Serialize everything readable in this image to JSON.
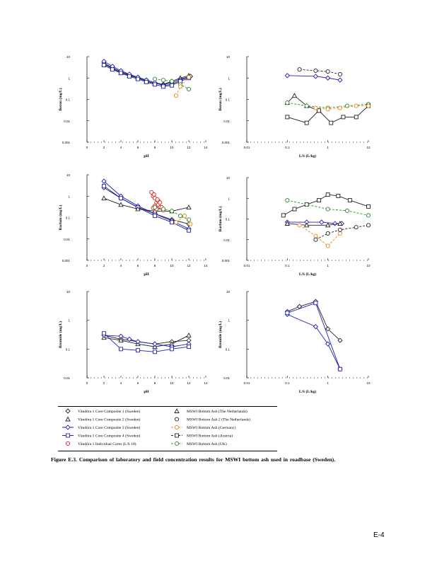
{
  "figure": {
    "caption": "Figure E.3. Comparison of laboratory and field concentration results for MSWI bottom ash used in roadbase (Sweden).",
    "page_number": "E-4"
  },
  "legend": {
    "left": [
      "Vändöra 1 Core Composite 1 (Sweden)",
      "Vändöra 1 Core Composite 2 (Sweden)",
      "Vändöra 1 Core Composite 3 (Sweden)",
      "Vändöra 1 Core Composite 4 (Sweden)",
      "Vändöra 1 Individual Cores (L/S 10)"
    ],
    "right": [
      "MSWI Bottom Ash (The Netherlands)",
      "MSWI Bottom Ash 2 (The Netherlands)",
      "MSWI Bottom Ash (Germany)",
      "MSWI Bottom Ash (Austria)",
      "MSWI Bottom Ash (UK)"
    ]
  },
  "colors": {
    "blue": "#1f1fb4",
    "green": "#2e8b2e",
    "orange": "#e08a1e",
    "red": "#dd2222",
    "dark": "#222222"
  },
  "chart_data": [
    {
      "type": "scatter",
      "id": "boron-ph",
      "xlabel": "pH",
      "ylabel": "Boron (mg/L)",
      "xlim": [
        0,
        14
      ],
      "ylim": [
        0.001,
        10
      ],
      "yscale": "log",
      "xticks": [
        "0",
        "2",
        "4",
        "6",
        "8",
        "10",
        "12",
        "14"
      ],
      "yticks": [
        "0.001",
        "0.01",
        "0.1",
        "1",
        "10"
      ],
      "series": [
        {
          "name": "Vändöra 1 Core Composite 1 (Sweden)",
          "color": "#222222",
          "marker": "diamond",
          "x": [
            2,
            3,
            4,
            5,
            6,
            7,
            8,
            9,
            10,
            11,
            12.2
          ],
          "y": [
            5,
            3,
            2,
            1.4,
            1,
            0.8,
            0.6,
            0.5,
            0.6,
            0.9,
            1.2
          ]
        },
        {
          "name": "Vändöra 1 Core Composite 2 (Sweden)",
          "color": "#222222",
          "marker": "triangle",
          "x": [
            2,
            3,
            4,
            5,
            6,
            7,
            8,
            9,
            10,
            11,
            12
          ],
          "y": [
            4.5,
            2.8,
            1.8,
            1.3,
            1,
            0.7,
            0.55,
            0.5,
            0.7,
            1,
            1.3
          ]
        },
        {
          "name": "Vändöra 1 Core Composite 3 (Sweden)",
          "color": "#1f1fb4",
          "marker": "line",
          "x": [
            2,
            3,
            4,
            5,
            6,
            7,
            8,
            9,
            10,
            11,
            12
          ],
          "y": [
            6,
            3.5,
            2.2,
            1.5,
            1.1,
            0.8,
            0.6,
            0.45,
            0.5,
            0.8,
            1.1
          ]
        },
        {
          "name": "Vändöra 1 Core Composite 4 (Sweden)",
          "color": "#1f1fb4",
          "marker": "square",
          "x": [
            2,
            3,
            4,
            5,
            6,
            7,
            8,
            9,
            10,
            11,
            12
          ],
          "y": [
            4,
            2.5,
            1.7,
            1.2,
            0.9,
            0.65,
            0.5,
            0.4,
            0.45,
            0.7,
            1
          ]
        },
        {
          "name": "MSWI Bottom Ash (Germany)",
          "color": "#2e8b2e",
          "marker": "circle",
          "x": [
            8,
            9,
            10,
            11,
            12
          ],
          "y": [
            0.9,
            0.8,
            0.7,
            0.5,
            0.3
          ]
        },
        {
          "name": "MSWI Bottom Ash (UK)",
          "color": "#e08a1e",
          "marker": "circle",
          "x": [
            10.5,
            11,
            12
          ],
          "y": [
            0.15,
            0.4,
            1.1
          ]
        }
      ]
    },
    {
      "type": "scatter",
      "id": "boron-ls",
      "xlabel": "L/S (L/kg)",
      "ylabel": "Boron (mg/L)",
      "xlim": [
        0.01,
        10
      ],
      "ylim": [
        0.001,
        10
      ],
      "xscale": "log",
      "yscale": "log",
      "xticks": [
        "0.01",
        "0.1",
        "1",
        "10"
      ],
      "yticks": [
        "0.001",
        "0.01",
        "0.1",
        "1",
        "10"
      ],
      "series": [
        {
          "name": "Vändöra 1 Core Composite 3 (Sweden)",
          "color": "#1f1fb4",
          "marker": "diamond",
          "x": [
            0.1,
            0.5,
            1,
            2
          ],
          "y": [
            1.3,
            1.2,
            1,
            0.8
          ]
        },
        {
          "name": "MSWI Bottom Ash 2 (The Netherlands)",
          "color": "#222222",
          "marker": "circle",
          "x": [
            0.2,
            0.5,
            1,
            2
          ],
          "y": [
            2.5,
            2.2,
            2,
            1.5
          ]
        },
        {
          "name": "MSWI Bottom Ash (The Netherlands)",
          "color": "#222222",
          "marker": "triangle",
          "x": [
            0.1,
            0.15,
            0.3,
            0.6
          ],
          "y": [
            0.07,
            0.15,
            0.05,
            0.03
          ]
        },
        {
          "name": "MSWI Bottom Ash (Germany)",
          "color": "#2e8b2e",
          "marker": "circle",
          "x": [
            0.1,
            0.3,
            1,
            3,
            10
          ],
          "y": [
            0.07,
            0.05,
            0.04,
            0.05,
            0.06
          ]
        },
        {
          "name": "MSWI Bottom Ash (Austria)",
          "color": "#222222",
          "marker": "square",
          "x": [
            0.1,
            0.3,
            0.6,
            1.2,
            2.4,
            5,
            10
          ],
          "y": [
            0.015,
            0.008,
            0.03,
            0.008,
            0.015,
            0.015,
            0.05
          ]
        },
        {
          "name": "MSWI Bottom Ash (UK)",
          "color": "#e08a1e",
          "marker": "circle",
          "x": [
            0.5,
            1,
            2,
            5,
            10
          ],
          "y": [
            0.04,
            0.035,
            0.04,
            0.05,
            0.05
          ]
        }
      ]
    },
    {
      "type": "scatter",
      "id": "barium-ph",
      "xlabel": "pH",
      "ylabel": "Barium (mg/L)",
      "xlim": [
        0,
        14
      ],
      "ylim": [
        0.001,
        10
      ],
      "yscale": "log",
      "xticks": [
        "0",
        "2",
        "4",
        "6",
        "8",
        "10",
        "12",
        "14"
      ],
      "yticks": [
        "0.001",
        "0.01",
        "0.1",
        "1",
        "10"
      ],
      "series": [
        {
          "name": "Vändöra 1 Core Composite 1 (Sweden)",
          "color": "#222222",
          "marker": "diamond",
          "x": [
            2,
            4,
            6,
            8,
            10,
            12
          ],
          "y": [
            2.5,
            0.8,
            0.3,
            0.15,
            0.08,
            0.05
          ]
        },
        {
          "name": "Vändöra 1 Core Composite 3 (Sweden)",
          "color": "#1f1fb4",
          "marker": "line",
          "x": [
            2,
            4,
            6,
            8,
            10,
            12
          ],
          "y": [
            5,
            1,
            0.35,
            0.15,
            0.07,
            0.03
          ]
        },
        {
          "name": "Vändöra 1 Core Composite 4 (Sweden)",
          "color": "#1f1fb4",
          "marker": "square",
          "x": [
            2,
            4,
            6,
            8,
            10,
            12
          ],
          "y": [
            3,
            0.8,
            0.3,
            0.12,
            0.06,
            0.025
          ]
        },
        {
          "name": "Vändöra 1 Core Composite 2 (Sweden)",
          "color": "#222222",
          "marker": "triangle",
          "x": [
            2,
            4,
            6,
            8,
            10,
            12
          ],
          "y": [
            0.8,
            0.4,
            0.25,
            0.2,
            0.2,
            0.3
          ]
        },
        {
          "name": "Vändöra 1 Individual Cores (L/S 10)",
          "color": "#dd2222",
          "marker": "circle",
          "x": [
            7.6,
            7.8,
            8,
            8.2,
            8.4,
            8.6,
            8,
            8.2,
            8.4,
            8.8,
            9,
            7.8,
            8.6,
            8.3,
            7.9
          ],
          "y": [
            1.5,
            1,
            0.8,
            0.5,
            0.4,
            0.3,
            0.35,
            0.25,
            0.6,
            0.3,
            0.22,
            0.28,
            0.5,
            0.7,
            1.2
          ]
        },
        {
          "name": "MSWI Bottom Ash (Germany)",
          "color": "#2e8b2e",
          "marker": "circle",
          "x": [
            8,
            9,
            10,
            11,
            12
          ],
          "y": [
            0.3,
            0.25,
            0.2,
            0.12,
            0.08
          ]
        },
        {
          "name": "MSWI Bottom Ash (UK)",
          "color": "#e08a1e",
          "marker": "circle",
          "x": [
            10.5,
            11.5,
            12.2
          ],
          "y": [
            0.06,
            0.12,
            0.05
          ]
        }
      ]
    },
    {
      "type": "scatter",
      "id": "barium-ls",
      "xlabel": "L/S (L/kg)",
      "ylabel": "Barium (mg/L)",
      "xlim": [
        0.01,
        10
      ],
      "ylim": [
        0.001,
        10
      ],
      "xscale": "log",
      "yscale": "log",
      "xticks": [
        "0.01",
        "0.1",
        "1",
        "10"
      ],
      "yticks": [
        "0.001",
        "0.01",
        "0.1",
        "1",
        "10"
      ],
      "series": [
        {
          "name": "MSWI Bottom Ash (Austria)",
          "color": "#222222",
          "marker": "square",
          "x": [
            0.08,
            0.15,
            0.3,
            0.6,
            1,
            1.8,
            3.5,
            10
          ],
          "y": [
            0.15,
            0.3,
            0.5,
            0.8,
            1.5,
            1.3,
            0.8,
            0.4
          ]
        },
        {
          "name": "MSWI Bottom Ash (Germany)",
          "color": "#2e8b2e",
          "marker": "circle",
          "x": [
            0.1,
            0.3,
            1,
            3,
            10
          ],
          "y": [
            0.8,
            0.5,
            0.3,
            0.25,
            0.15
          ]
        },
        {
          "name": "Vändöra 1 Core Composite 3 (Sweden)",
          "color": "#1f1fb4",
          "marker": "diamond",
          "x": [
            0.1,
            0.3,
            0.7,
            1.5,
            2.2
          ],
          "y": [
            0.07,
            0.07,
            0.07,
            0.06,
            0.06
          ]
        },
        {
          "name": "MSWI Bottom Ash (The Netherlands)",
          "color": "#222222",
          "marker": "triangle",
          "x": [
            0.1,
            0.3,
            1,
            2
          ],
          "y": [
            0.06,
            0.05,
            0.05,
            0.06
          ]
        },
        {
          "name": "MSWI Bottom Ash (UK)",
          "color": "#e08a1e",
          "marker": "circle",
          "x": [
            0.2,
            0.5,
            1,
            2
          ],
          "y": [
            0.05,
            0.015,
            0.005,
            0.02
          ]
        },
        {
          "name": "MSWI Bottom Ash 2 (The Netherlands)",
          "color": "#222222",
          "marker": "circle",
          "x": [
            0.5,
            1,
            2,
            5,
            10
          ],
          "y": [
            0.01,
            0.02,
            0.03,
            0.04,
            0.05
          ]
        }
      ]
    },
    {
      "type": "scatter",
      "id": "bromide-ph",
      "xlabel": "pH",
      "ylabel": "Bromide (mg/L)",
      "xlim": [
        0,
        14
      ],
      "ylim": [
        0.01,
        10
      ],
      "yscale": "log",
      "xticks": [
        "0",
        "2",
        "4",
        "6",
        "8",
        "10",
        "12",
        "14"
      ],
      "yticks": [
        "0.01",
        "0.1",
        "1",
        "10"
      ],
      "series": [
        {
          "name": "Vändöra 1 Core Composite 1 (Sweden)",
          "color": "#222222",
          "marker": "diamond",
          "x": [
            2,
            4,
            6,
            8,
            10,
            12
          ],
          "y": [
            0.3,
            0.22,
            0.18,
            0.15,
            0.18,
            0.2
          ]
        },
        {
          "name": "Vändöra 1 Core Composite 2 (Sweden)",
          "color": "#222222",
          "marker": "triangle",
          "x": [
            2,
            4,
            6,
            8,
            10,
            12
          ],
          "y": [
            0.25,
            0.2,
            0.15,
            0.12,
            0.15,
            0.3
          ]
        },
        {
          "name": "Vändöra 1 Core Composite 3 (Sweden)",
          "color": "#1f1fb4",
          "marker": "line",
          "x": [
            2,
            4,
            5,
            6,
            8,
            10,
            12
          ],
          "y": [
            0.3,
            0.28,
            0.22,
            0.18,
            0.15,
            0.12,
            0.15
          ]
        },
        {
          "name": "Vändöra 1 Core Composite 4 (Sweden)",
          "color": "#1f1fb4",
          "marker": "square",
          "x": [
            2,
            4,
            6,
            8,
            10,
            12
          ],
          "y": [
            0.35,
            0.1,
            0.09,
            0.08,
            0.1,
            0.12
          ]
        }
      ]
    },
    {
      "type": "scatter",
      "id": "bromide-ls",
      "xlabel": "L/S (L/kg)",
      "ylabel": "Bromide (mg/L)",
      "xlim": [
        0.01,
        10
      ],
      "ylim": [
        0.01,
        10
      ],
      "xscale": "log",
      "yscale": "log",
      "xticks": [
        "0.01",
        "0.1",
        "1",
        "10"
      ],
      "yticks": [
        "0.01",
        "0.1",
        "1",
        "10"
      ],
      "series": [
        {
          "name": "Vändöra 1 Core Composite 1 (Sweden)",
          "color": "#222222",
          "marker": "diamond",
          "x": [
            0.1,
            0.2,
            0.5,
            1,
            2
          ],
          "y": [
            2,
            3,
            4.5,
            0.5,
            0.2
          ]
        },
        {
          "name": "Vändöra 1 Core Composite 3 (Sweden)",
          "color": "#1f1fb4",
          "marker": "line",
          "x": [
            0.1,
            0.5,
            1,
            2
          ],
          "y": [
            1.6,
            0.6,
            0.15,
            0.02
          ]
        },
        {
          "name": "Vändöra 1 Core Composite 4 (Sweden)",
          "color": "#1f1fb4",
          "marker": "square",
          "x": [
            0.1,
            0.5,
            2
          ],
          "y": [
            1.8,
            4,
            0.02
          ]
        }
      ]
    }
  ]
}
